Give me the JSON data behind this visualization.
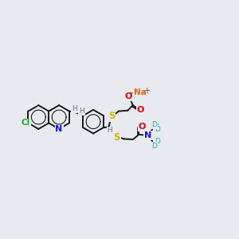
{
  "bg_color": "#e8eaf0",
  "bond_color": "#1a1a1a",
  "bond_width": 1.4,
  "atom_colors": {
    "N": "#1010ee",
    "O": "#dd0000",
    "S": "#ccbb00",
    "Cl": "#22aa22",
    "Na": "#ee6600",
    "D": "#22aaaa",
    "H": "#777777",
    "C": "#1a1a1a"
  },
  "figsize": [
    3.0,
    3.0
  ],
  "dpi": 100,
  "xlim": [
    0,
    10
  ],
  "ylim": [
    0,
    10
  ]
}
